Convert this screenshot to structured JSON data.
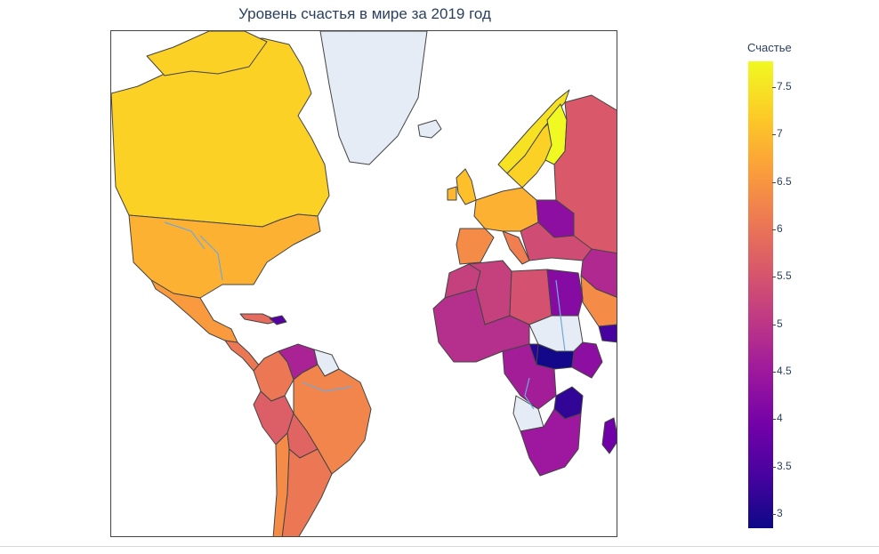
{
  "title": "Уровень счастья в мире за 2019 год",
  "colorbar": {
    "title": "Счастье",
    "ticks": [
      "7.5",
      "7",
      "6.5",
      "6",
      "5.5",
      "5",
      "4.5",
      "4",
      "3.5",
      "3"
    ],
    "range": [
      2.85,
      7.77
    ],
    "colorscale": "plasma",
    "colors": [
      "#0d0887",
      "#46039f",
      "#7201a8",
      "#9c179e",
      "#bd3786",
      "#d8576b",
      "#ed7953",
      "#fb9f3a",
      "#fdca26",
      "#f0f921"
    ]
  },
  "map": {
    "projection": "mercator",
    "no_data_color": "#e5ecf6",
    "border_color": "#444444",
    "land_color": "#ffffff",
    "lake_color": "#ffffff",
    "river_color": "#6fa8dc"
  },
  "chart_data": {
    "type": "choropleth",
    "title": "Уровень счастья в мире за 2019 год",
    "colorbar_title": "Счастье",
    "z_range": [
      2.85,
      7.77
    ],
    "regions": [
      {
        "country": "Finland",
        "value": 7.8
      },
      {
        "country": "Norway",
        "value": 7.5
      },
      {
        "country": "Sweden",
        "value": 7.3
      },
      {
        "country": "Canada",
        "value": 7.3
      },
      {
        "country": "Greenland",
        "value": null
      },
      {
        "country": "United States",
        "value": 6.9
      },
      {
        "country": "Mexico",
        "value": 6.6
      },
      {
        "country": "Brazil",
        "value": 6.3
      },
      {
        "country": "Argentina",
        "value": 6.1
      },
      {
        "country": "Colombia",
        "value": 6.1
      },
      {
        "country": "Peru",
        "value": 5.7
      },
      {
        "country": "Venezuela",
        "value": 4.7
      },
      {
        "country": "Bolivia",
        "value": 5.8
      },
      {
        "country": "Haiti",
        "value": 3.6
      },
      {
        "country": "Russia",
        "value": 5.6
      },
      {
        "country": "United Kingdom",
        "value": 7.1
      },
      {
        "country": "Spain",
        "value": 6.4
      },
      {
        "country": "Ukraine",
        "value": 4.3
      },
      {
        "country": "Saudi Arabia",
        "value": 6.4
      },
      {
        "country": "Egypt",
        "value": 4.2
      },
      {
        "country": "Libya",
        "value": 5.5
      },
      {
        "country": "Algeria",
        "value": 5.2
      },
      {
        "country": "Sudan",
        "value": null
      },
      {
        "country": "South Sudan",
        "value": 2.9
      },
      {
        "country": "Central African Republic",
        "value": 3.1
      },
      {
        "country": "Tanzania",
        "value": 3.2
      },
      {
        "country": "Angola",
        "value": null
      },
      {
        "country": "Madagascar",
        "value": 3.9
      },
      {
        "country": "South Africa",
        "value": 4.7
      }
    ]
  }
}
